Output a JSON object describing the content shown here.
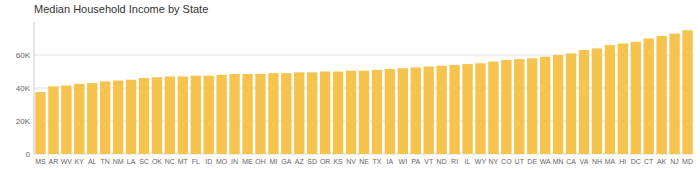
{
  "chart_data": {
    "type": "bar",
    "title": "Median Household Income by State",
    "categories": [
      "MS",
      "AR",
      "WV",
      "KY",
      "AL",
      "TN",
      "NM",
      "LA",
      "SC",
      "OK",
      "NC",
      "MT",
      "FL",
      "ID",
      "MO",
      "IN",
      "ME",
      "OH",
      "MI",
      "GA",
      "AZ",
      "SD",
      "OR",
      "KS",
      "NV",
      "NE",
      "TX",
      "IA",
      "WI",
      "PA",
      "VT",
      "ND",
      "RI",
      "IL",
      "WY",
      "NY",
      "CO",
      "UT",
      "DE",
      "WA",
      "MN",
      "CA",
      "VA",
      "NH",
      "MA",
      "HI",
      "DC",
      "CT",
      "AK",
      "NJ",
      "MD"
    ],
    "values": [
      37500,
      41000,
      41500,
      42500,
      43000,
      44000,
      44500,
      45000,
      46000,
      46500,
      47000,
      47000,
      47500,
      47500,
      48000,
      48500,
      48500,
      48500,
      49000,
      49000,
      49500,
      49500,
      50000,
      50000,
      50500,
      50500,
      51000,
      51500,
      52000,
      52500,
      53000,
      53500,
      54000,
      54500,
      55000,
      56000,
      57000,
      57500,
      58000,
      59000,
      60000,
      61000,
      63000,
      64000,
      66000,
      67000,
      68000,
      70000,
      71500,
      73000,
      75000
    ],
    "color": "#F5C34E",
    "ylim": [
      0,
      80000
    ],
    "yticks": [
      0,
      {
        "value": 20000,
        "label": "20K"
      },
      {
        "value": 40000,
        "label": "40K"
      },
      {
        "value": 60000,
        "label": "60K"
      }
    ],
    "grid": true
  }
}
